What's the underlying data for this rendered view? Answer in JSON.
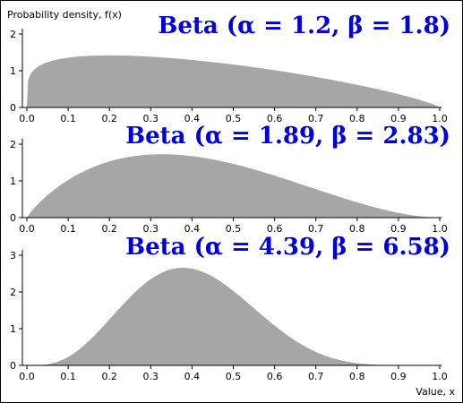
{
  "ylabel": "Probability density, f(x)",
  "xlabel": "Value, x",
  "colors": {
    "fill": "#a6a6a6",
    "title": "#0000dd",
    "axis": "#000000",
    "border": "#000000"
  },
  "chart_data": [
    {
      "type": "area",
      "title": "Beta (α = 1.2, β = 1.8)",
      "alpha": 1.2,
      "beta": 1.8,
      "xlim": [
        0,
        1
      ],
      "ylim": [
        0,
        2
      ],
      "xticks": [
        "0.0",
        "0.1",
        "0.2",
        "0.3",
        "0.4",
        "0.5",
        "0.6",
        "0.7",
        "0.8",
        "0.9",
        "1.0"
      ],
      "yticks": [
        "0",
        "1",
        "2"
      ],
      "grid": false
    },
    {
      "type": "area",
      "title": "Beta (α = 1.89, β = 2.83)",
      "alpha": 1.89,
      "beta": 2.83,
      "xlim": [
        0,
        1
      ],
      "ylim": [
        0,
        2
      ],
      "xticks": [
        "0.0",
        "0.1",
        "0.2",
        "0.3",
        "0.4",
        "0.5",
        "0.6",
        "0.7",
        "0.8",
        "0.9",
        "1.0"
      ],
      "yticks": [
        "0",
        "1",
        "2"
      ],
      "grid": false
    },
    {
      "type": "area",
      "title": "Beta (α = 4.39, β = 6.58)",
      "alpha": 4.39,
      "beta": 6.58,
      "xlim": [
        0,
        1
      ],
      "ylim": [
        0,
        3
      ],
      "xticks": [
        "0.0",
        "0.1",
        "0.2",
        "0.3",
        "0.4",
        "0.5",
        "0.6",
        "0.7",
        "0.8",
        "0.9",
        "1.0"
      ],
      "yticks": [
        "0",
        "1",
        "2",
        "3"
      ],
      "grid": false
    }
  ]
}
